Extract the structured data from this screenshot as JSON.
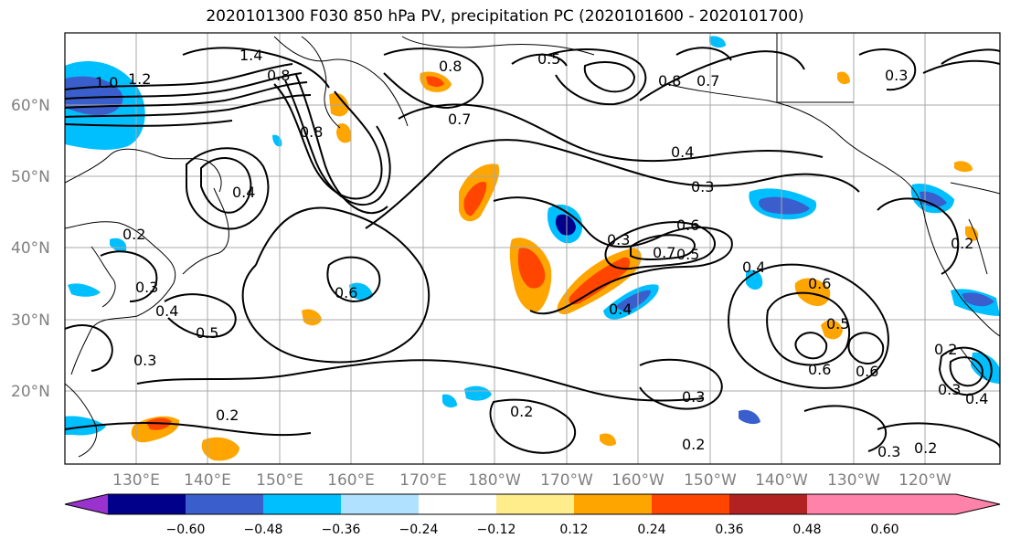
{
  "title": "2020101300 F030 850 hPa PV, precipitation PC (2020101600 - 2020101700)",
  "lat_labels": [
    "60°N",
    "50°N",
    "40°N",
    "30°N",
    "20°N"
  ],
  "lon_labels": [
    "130°E",
    "140°E",
    "150°E",
    "160°E",
    "170°E",
    "180°W",
    "170°W",
    "160°W",
    "150°W",
    "140°W",
    "130°W",
    "120°W"
  ],
  "colorbar": {
    "colors": [
      "#9a32cd",
      "#00008b",
      "#3a5fcd",
      "#00bfff",
      "#b0e2ff",
      "#ffffff",
      "#ffec8b",
      "#ffa500",
      "#ff4500",
      "#b22222",
      "#ff82ab"
    ],
    "labels": [
      "−0.60",
      "−0.48",
      "−0.36",
      "−0.24",
      "−0.12",
      "0.12",
      "0.24",
      "0.36",
      "0.48",
      "0.60"
    ]
  },
  "contour_labels": [
    "1.4",
    "1.2",
    "0.8",
    "1.0",
    "0.8",
    "0.5",
    "0.8",
    "0.7",
    "0.8",
    "0.7",
    "0.4",
    "0.3",
    "0.4",
    "0.2",
    "0.3",
    "0.4",
    "0.5",
    "0.6",
    "0.3",
    "0.6",
    "0.7",
    "0.5",
    "0.4",
    "0.6",
    "0.5",
    "0.6",
    "0.6",
    "0.2",
    "0.2",
    "0.3",
    "0.4",
    "0.2",
    "0.3",
    "0.2",
    "0.2",
    "0.3",
    "0.2",
    "0.3",
    "0.4",
    "0.3"
  ]
}
